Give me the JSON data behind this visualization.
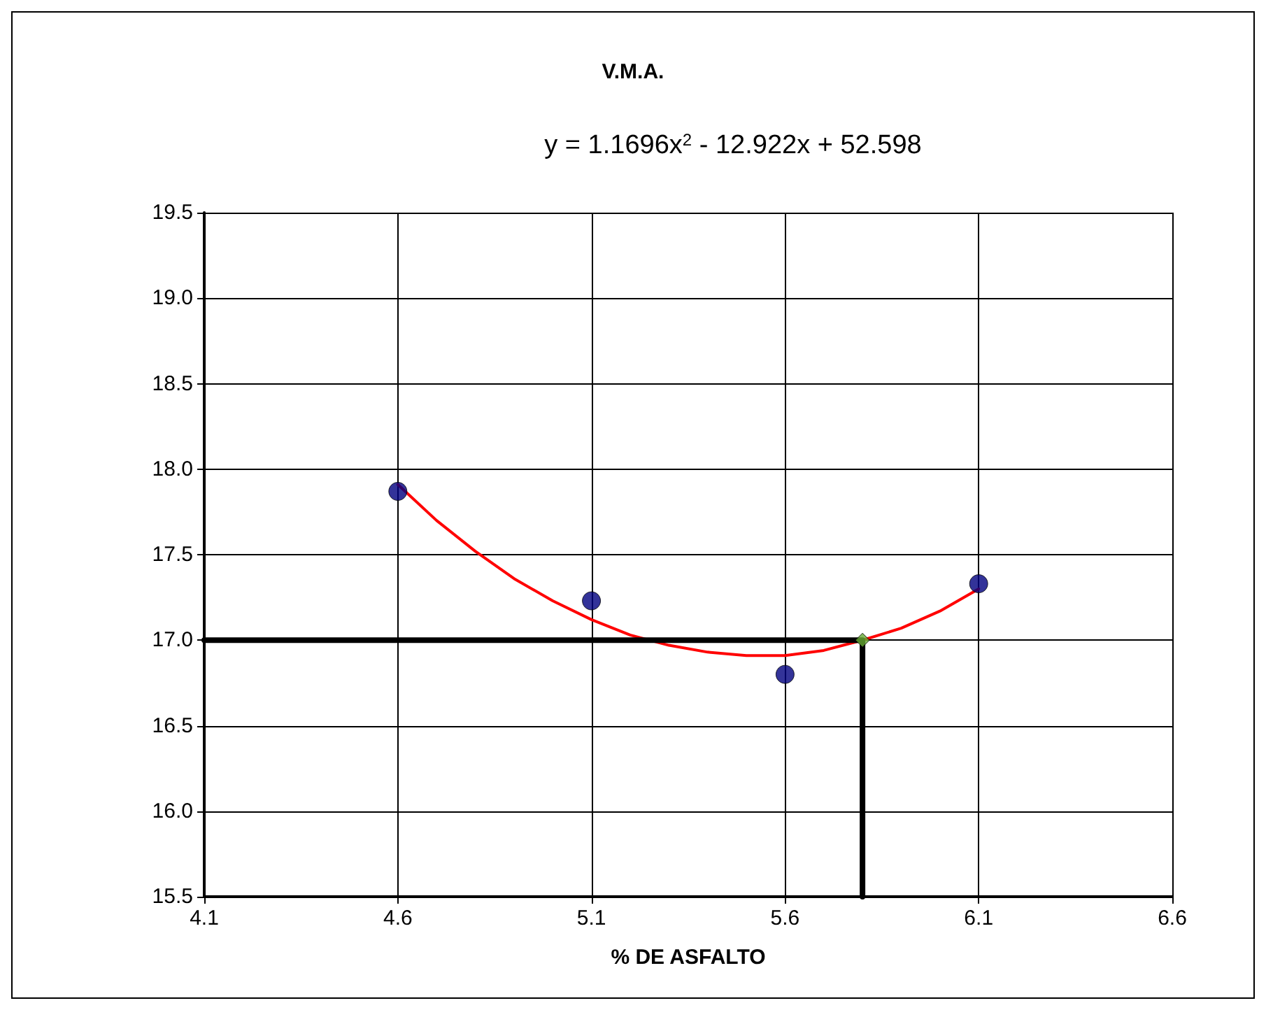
{
  "chart_data": {
    "type": "scatter",
    "title": "V.M.A.",
    "subtitle": "y = 1.1696x$^{2}$ - 12.922x + 52.598",
    "xlabel": "% DE ASFALTO",
    "xlim": [
      4.1,
      6.6
    ],
    "xticks": [
      4.1,
      4.6,
      5.1,
      5.6,
      6.1,
      6.6
    ],
    "ylim": [
      15.5,
      19.5
    ],
    "yticks": [
      15.5,
      {
        "value": 16,
        "label": "16.0"
      },
      16.5,
      {
        "value": 17,
        "label": "17.0"
      },
      17.5,
      {
        "value": 18,
        "label": "18.0"
      },
      18.5,
      {
        "value": 19,
        "label": "19.0"
      },
      19.5
    ],
    "grid": true,
    "series": [
      {
        "type": "line",
        "color": "#ff0000",
        "marker": "none",
        "line_style": "solid",
        "x": [
          4.6,
          4.7,
          4.8,
          4.9,
          5.0,
          5.1,
          5.2,
          5.3,
          5.4,
          5.5,
          5.6,
          5.7,
          5.8,
          5.9,
          6.0,
          6.1
        ],
        "values": [
          17.91,
          17.7,
          17.52,
          17.36,
          17.23,
          17.12,
          17.03,
          16.97,
          16.93,
          16.91,
          16.91,
          16.94,
          17.0,
          17.07,
          17.17,
          17.3
        ]
      },
      {
        "type": "line",
        "color": "#000000",
        "marker": "none",
        "line_style": "solid",
        "x": [
          4.1,
          5.8,
          5.8
        ],
        "values": [
          17.0,
          17.0,
          15.5
        ]
      },
      {
        "color": "#000080",
        "marker": "circle",
        "x": [
          4.6,
          5.1,
          5.6,
          6.1
        ],
        "values": [
          17.87,
          17.23,
          16.8,
          17.33
        ]
      },
      {
        "color": "#66aa33",
        "marker": "diamond",
        "x": [
          5.8
        ],
        "values": [
          17.0
        ]
      }
    ]
  }
}
